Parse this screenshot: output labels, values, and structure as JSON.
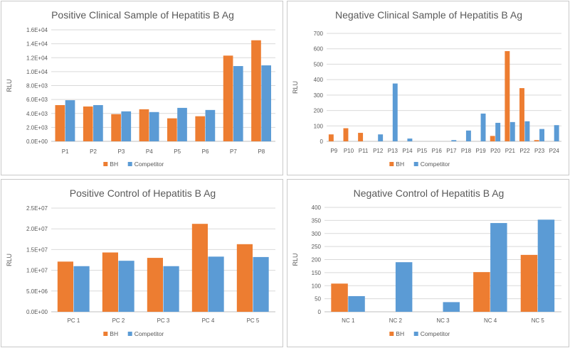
{
  "colors": {
    "bh": "#ED7D31",
    "competitor": "#5B9BD5",
    "grid": "#d9d9d9",
    "axis": "#bfbfbf"
  },
  "chart_data": [
    {
      "type": "bar",
      "title": "Positive Clinical Sample of  Hepatitis B Ag",
      "ylabel": "RLU",
      "xlabel": "",
      "categories": [
        "P1",
        "P2",
        "P3",
        "P4",
        "P5",
        "P6",
        "P7",
        "P8"
      ],
      "series": [
        {
          "name": "BH",
          "values": [
            5200,
            5000,
            3900,
            4600,
            3300,
            3600,
            12300,
            14500
          ]
        },
        {
          "name": "Competitor",
          "values": [
            5900,
            5200,
            4300,
            4200,
            4800,
            4500,
            10800,
            10900
          ]
        }
      ],
      "ylim": [
        0,
        16000
      ],
      "yticks": [
        "0.0E+00",
        "2.0E+03",
        "4.0E+03",
        "6.0E+03",
        "8.0E+03",
        "1.0E+04",
        "1.2E+04",
        "1.4E+04",
        "1.6E+04"
      ],
      "grid": true,
      "legend": "bottom"
    },
    {
      "type": "bar",
      "title": "Negative Clinical Sample of  Hepatitis B Ag",
      "ylabel": "RLU",
      "xlabel": "",
      "categories": [
        "P9",
        "P10",
        "P11",
        "P12",
        "P13",
        "P14",
        "P15",
        "P16",
        "P17",
        "P18",
        "P19",
        "P20",
        "P21",
        "P22",
        "P23",
        "P24"
      ],
      "series": [
        {
          "name": "BH",
          "values": [
            45,
            85,
            55,
            0,
            0,
            0,
            0,
            0,
            0,
            0,
            0,
            35,
            585,
            345,
            8,
            0
          ]
        },
        {
          "name": "Competitor",
          "values": [
            0,
            0,
            0,
            45,
            375,
            18,
            0,
            0,
            8,
            70,
            180,
            120,
            125,
            130,
            80,
            105
          ]
        }
      ],
      "ylim": [
        0,
        700
      ],
      "yticks": [
        "0",
        "100",
        "200",
        "300",
        "400",
        "500",
        "600",
        "700"
      ],
      "grid": true,
      "legend": "bottom"
    },
    {
      "type": "bar",
      "title": "Positive Control of Hepatitis B Ag",
      "ylabel": "RLU",
      "xlabel": "",
      "categories": [
        "PC 1",
        "PC 2",
        "PC 3",
        "PC 4",
        "PC 5"
      ],
      "series": [
        {
          "name": "BH",
          "values": [
            12100000,
            14300000,
            13000000,
            21200000,
            16300000
          ]
        },
        {
          "name": "Competitor",
          "values": [
            11000000,
            12300000,
            11000000,
            13300000,
            13200000
          ]
        }
      ],
      "ylim": [
        0,
        25000000
      ],
      "yticks": [
        "0.0E+00",
        "5.0E+06",
        "1.0E+07",
        "1.5E+07",
        "2.0E+07",
        "2.5E+07"
      ],
      "grid": true,
      "legend": "bottom"
    },
    {
      "type": "bar",
      "title": "Negative Control of Hepatitis B Ag",
      "ylabel": "RLU",
      "xlabel": "",
      "categories": [
        "NC 1",
        "NC 2",
        "NC 3",
        "NC 4",
        "NC 5"
      ],
      "series": [
        {
          "name": "BH",
          "values": [
            108,
            0,
            0,
            152,
            218
          ]
        },
        {
          "name": "Competitor",
          "values": [
            60,
            190,
            37,
            340,
            353
          ]
        }
      ],
      "ylim": [
        0,
        400
      ],
      "yticks": [
        "0",
        "50",
        "100",
        "150",
        "200",
        "250",
        "300",
        "350",
        "400"
      ],
      "grid": true,
      "legend": "bottom"
    }
  ]
}
